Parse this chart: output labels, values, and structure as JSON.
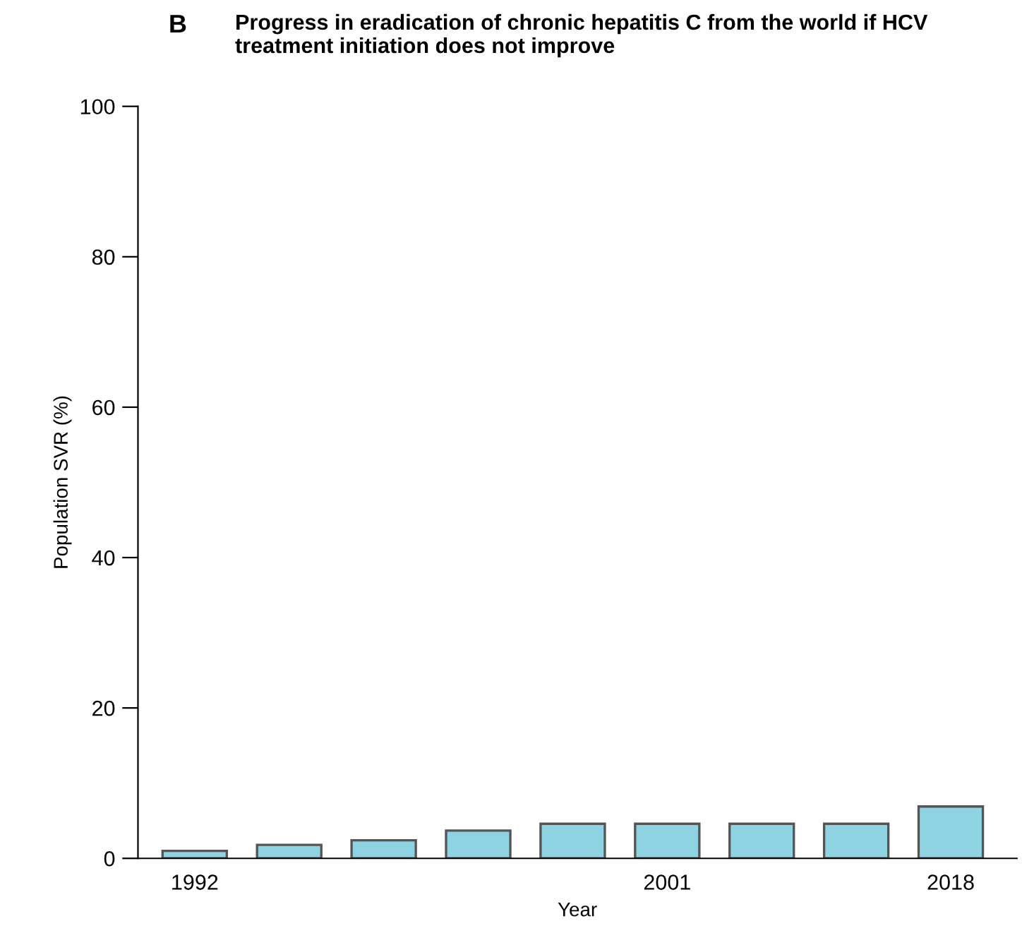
{
  "chart_data": {
    "type": "bar",
    "title": "Progress in eradication of chronic hepatitis C from the world if HCV treatment initiation does not improve",
    "annotations": [
      "B"
    ],
    "xlabel": "Year",
    "ylabel": "Population SVR (%)",
    "categories": [
      "1992",
      null,
      null,
      null,
      null,
      "2001",
      null,
      null,
      "2018"
    ],
    "values": [
      1.0,
      1.8,
      2.4,
      3.7,
      4.6,
      4.6,
      4.6,
      4.6,
      6.9
    ],
    "color": "#8dd3e2",
    "ylim": [
      0,
      100
    ],
    "yticks": [
      0,
      20,
      40,
      60,
      80,
      100
    ],
    "grid": false
  }
}
